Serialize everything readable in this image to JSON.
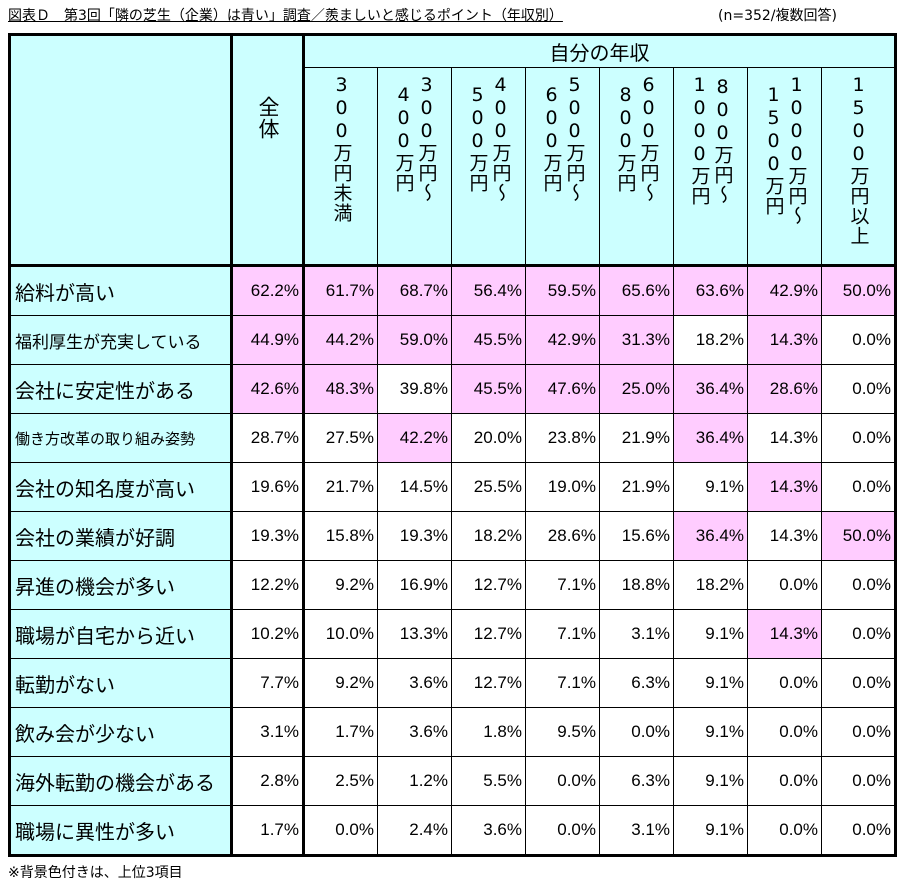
{
  "header": {
    "title": "図表Ｄ　第3回「隣の芝生（企業）は青い」調査／羨ましいと感じるポイント（年収別）",
    "note": "(n=352/複数回答)"
  },
  "table": {
    "group_label": "自分の年収",
    "columns": [
      "全体",
      "300万円未満",
      "300万円～\n400万円",
      "400万円～\n500万円",
      "500万円～\n600万円",
      "600万円～\n800万円",
      "800万円～\n1000万円",
      "1000万円～\n1500万円",
      "1500万円以上"
    ],
    "rows": [
      {
        "label": "給料が高い",
        "values": [
          "62.2%",
          "61.7%",
          "68.7%",
          "56.4%",
          "59.5%",
          "65.6%",
          "63.6%",
          "42.9%",
          "50.0%"
        ],
        "highlight": [
          0,
          1,
          2,
          3,
          4,
          5,
          6,
          7,
          8
        ]
      },
      {
        "label": "福利厚生が充実している",
        "values": [
          "44.9%",
          "44.2%",
          "59.0%",
          "45.5%",
          "42.9%",
          "31.3%",
          "18.2%",
          "14.3%",
          "0.0%"
        ],
        "highlight": [
          0,
          1,
          2,
          3,
          4,
          5,
          7
        ]
      },
      {
        "label": "会社に安定性がある",
        "values": [
          "42.6%",
          "48.3%",
          "39.8%",
          "45.5%",
          "47.6%",
          "25.0%",
          "36.4%",
          "28.6%",
          "0.0%"
        ],
        "highlight": [
          0,
          1,
          3,
          4,
          5,
          6,
          7
        ]
      },
      {
        "label": "働き方改革の取り組み姿勢",
        "values": [
          "28.7%",
          "27.5%",
          "42.2%",
          "20.0%",
          "23.8%",
          "21.9%",
          "36.4%",
          "14.3%",
          "0.0%"
        ],
        "highlight": [
          2,
          6
        ]
      },
      {
        "label": "会社の知名度が高い",
        "values": [
          "19.6%",
          "21.7%",
          "14.5%",
          "25.5%",
          "19.0%",
          "21.9%",
          "9.1%",
          "14.3%",
          "0.0%"
        ],
        "highlight": [
          7
        ]
      },
      {
        "label": "会社の業績が好調",
        "values": [
          "19.3%",
          "15.8%",
          "19.3%",
          "18.2%",
          "28.6%",
          "15.6%",
          "36.4%",
          "14.3%",
          "50.0%"
        ],
        "highlight": [
          6,
          8
        ]
      },
      {
        "label": "昇進の機会が多い",
        "values": [
          "12.2%",
          "9.2%",
          "16.9%",
          "12.7%",
          "7.1%",
          "18.8%",
          "18.2%",
          "0.0%",
          "0.0%"
        ],
        "highlight": []
      },
      {
        "label": "職場が自宅から近い",
        "values": [
          "10.2%",
          "10.0%",
          "13.3%",
          "12.7%",
          "7.1%",
          "3.1%",
          "9.1%",
          "14.3%",
          "0.0%"
        ],
        "highlight": [
          7
        ]
      },
      {
        "label": "転勤がない",
        "values": [
          "7.7%",
          "9.2%",
          "3.6%",
          "12.7%",
          "7.1%",
          "6.3%",
          "9.1%",
          "0.0%",
          "0.0%"
        ],
        "highlight": []
      },
      {
        "label": "飲み会が少ない",
        "values": [
          "3.1%",
          "1.7%",
          "3.6%",
          "1.8%",
          "9.5%",
          "0.0%",
          "9.1%",
          "0.0%",
          "0.0%"
        ],
        "highlight": []
      },
      {
        "label": "海外転勤の機会がある",
        "values": [
          "2.8%",
          "2.5%",
          "1.2%",
          "5.5%",
          "0.0%",
          "6.3%",
          "9.1%",
          "0.0%",
          "0.0%"
        ],
        "highlight": []
      },
      {
        "label": "職場に異性が多い",
        "values": [
          "1.7%",
          "0.0%",
          "2.4%",
          "3.6%",
          "0.0%",
          "3.1%",
          "9.1%",
          "0.0%",
          "0.0%"
        ],
        "highlight": []
      }
    ]
  },
  "footer": {
    "note": "※背景色付きは、上位3項目"
  }
}
